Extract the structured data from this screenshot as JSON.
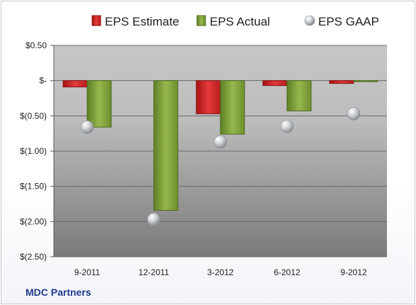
{
  "footer": {
    "company": "MDC Partners"
  },
  "chart_data": {
    "type": "bar",
    "categories": [
      "9-2011",
      "12-2011",
      "3-2012",
      "6-2012",
      "9-2012"
    ],
    "series": [
      {
        "name": "EPS Estimate",
        "kind": "bar",
        "color": "#d42a2a",
        "values": [
          -0.09,
          null,
          -0.47,
          -0.07,
          -0.04
        ]
      },
      {
        "name": "EPS Actual",
        "kind": "bar",
        "color": "#86a844",
        "values": [
          -0.66,
          -1.84,
          -0.76,
          -0.43,
          -0.01
        ]
      },
      {
        "name": "EPS GAAP",
        "kind": "marker",
        "color": "#b9bcc0",
        "values": [
          -0.66,
          -1.97,
          -0.87,
          -0.65,
          -0.47
        ]
      }
    ],
    "y_ticks": [
      0.5,
      0,
      -0.5,
      -1.0,
      -1.5,
      -2.0,
      -2.5
    ],
    "y_tick_labels": [
      "$0.50",
      "$-",
      "$(0.50)",
      "$(1.00)",
      "$(1.50)",
      "$(2.00)",
      "$(2.50)"
    ],
    "ylim": [
      -2.5,
      0.5
    ],
    "legend_position": "top",
    "grid": true
  }
}
